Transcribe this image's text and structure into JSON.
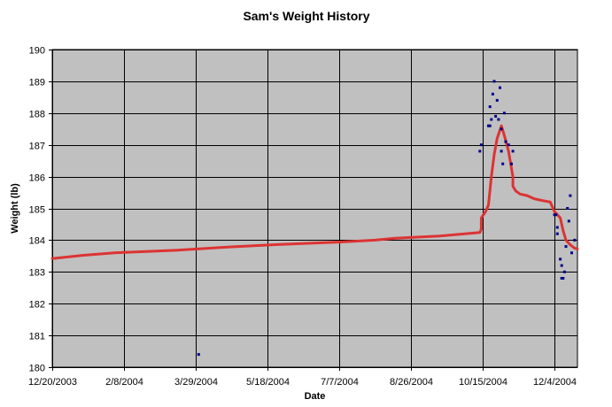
{
  "chart_data": {
    "type": "scatter",
    "title": "Sam's Weight History",
    "xlabel": "Date",
    "ylabel": "Weight (lb)",
    "ylim": [
      180,
      190
    ],
    "yticks": [
      180,
      181,
      182,
      183,
      184,
      185,
      186,
      187,
      188,
      189,
      190
    ],
    "xlim": [
      "2003-12-20",
      "2004-12-20"
    ],
    "xticks": [
      {
        "date": "2003-12-20",
        "label": "12/20/2003"
      },
      {
        "date": "2004-02-08",
        "label": "2/8/2004"
      },
      {
        "date": "2004-03-29",
        "label": "3/29/2004"
      },
      {
        "date": "2004-05-18",
        "label": "5/18/2004"
      },
      {
        "date": "2004-07-07",
        "label": "7/7/2004"
      },
      {
        "date": "2004-08-26",
        "label": "8/26/2004"
      },
      {
        "date": "2004-10-15",
        "label": "10/15/2004"
      },
      {
        "date": "2004-12-04",
        "label": "12/4/2004"
      }
    ],
    "grid": true,
    "plot_background": "#c0c0c0",
    "grid_color": "#000000",
    "series": [
      {
        "kind": "scatter",
        "color": "#00008b",
        "points": [
          {
            "x": "2004-03-31",
            "y": 180.4
          },
          {
            "x": "2004-10-13",
            "y": 186.8
          },
          {
            "x": "2004-10-14",
            "y": 187.0
          },
          {
            "x": "2004-10-19",
            "y": 187.6
          },
          {
            "x": "2004-10-20",
            "y": 187.6
          },
          {
            "x": "2004-10-20",
            "y": 188.2
          },
          {
            "x": "2004-10-21",
            "y": 187.8
          },
          {
            "x": "2004-10-22",
            "y": 188.6
          },
          {
            "x": "2004-10-23",
            "y": 189.0
          },
          {
            "x": "2004-10-24",
            "y": 187.9
          },
          {
            "x": "2004-10-25",
            "y": 188.4
          },
          {
            "x": "2004-10-26",
            "y": 187.8
          },
          {
            "x": "2004-10-27",
            "y": 188.8
          },
          {
            "x": "2004-10-28",
            "y": 186.8
          },
          {
            "x": "2004-10-28",
            "y": 187.5
          },
          {
            "x": "2004-10-29",
            "y": 186.4
          },
          {
            "x": "2004-10-30",
            "y": 188.0
          },
          {
            "x": "2004-10-31",
            "y": 187.1
          },
          {
            "x": "2004-11-02",
            "y": 187.0
          },
          {
            "x": "2004-11-04",
            "y": 186.4
          },
          {
            "x": "2004-11-05",
            "y": 186.8
          },
          {
            "x": "2004-12-04",
            "y": 184.8
          },
          {
            "x": "2004-12-05",
            "y": 184.8
          },
          {
            "x": "2004-12-06",
            "y": 184.4
          },
          {
            "x": "2004-12-06",
            "y": 184.2
          },
          {
            "x": "2004-12-08",
            "y": 183.4
          },
          {
            "x": "2004-12-09",
            "y": 183.2
          },
          {
            "x": "2004-12-09",
            "y": 182.8
          },
          {
            "x": "2004-12-10",
            "y": 182.8
          },
          {
            "x": "2004-12-11",
            "y": 183.0
          },
          {
            "x": "2004-12-12",
            "y": 183.8
          },
          {
            "x": "2004-12-13",
            "y": 185.0
          },
          {
            "x": "2004-12-14",
            "y": 184.6
          },
          {
            "x": "2004-12-15",
            "y": 185.4
          },
          {
            "x": "2004-12-16",
            "y": 183.6
          },
          {
            "x": "2004-12-18",
            "y": 184.0
          }
        ]
      },
      {
        "kind": "line",
        "color": "#dd3333",
        "points": [
          {
            "x": "2003-12-20",
            "y": 183.42
          },
          {
            "x": "2004-01-10",
            "y": 183.52
          },
          {
            "x": "2004-02-01",
            "y": 183.6
          },
          {
            "x": "2004-03-15",
            "y": 183.68
          },
          {
            "x": "2004-04-20",
            "y": 183.78
          },
          {
            "x": "2004-05-25",
            "y": 183.86
          },
          {
            "x": "2004-07-07",
            "y": 183.94
          },
          {
            "x": "2004-08-01",
            "y": 184.0
          },
          {
            "x": "2004-08-15",
            "y": 184.06
          },
          {
            "x": "2004-09-15",
            "y": 184.13
          },
          {
            "x": "2004-10-13",
            "y": 184.24
          },
          {
            "x": "2004-10-14",
            "y": 184.35
          },
          {
            "x": "2004-10-14",
            "y": 184.7
          },
          {
            "x": "2004-10-17",
            "y": 184.9
          },
          {
            "x": "2004-10-19",
            "y": 185.1
          },
          {
            "x": "2004-10-21",
            "y": 186.0
          },
          {
            "x": "2004-10-23",
            "y": 186.7
          },
          {
            "x": "2004-10-25",
            "y": 187.2
          },
          {
            "x": "2004-10-28",
            "y": 187.6
          },
          {
            "x": "2004-10-30",
            "y": 187.3
          },
          {
            "x": "2004-11-02",
            "y": 186.8
          },
          {
            "x": "2004-11-05",
            "y": 186.0
          },
          {
            "x": "2004-11-05",
            "y": 185.7
          },
          {
            "x": "2004-11-07",
            "y": 185.55
          },
          {
            "x": "2004-11-10",
            "y": 185.45
          },
          {
            "x": "2004-11-15",
            "y": 185.4
          },
          {
            "x": "2004-11-20",
            "y": 185.3
          },
          {
            "x": "2004-11-25",
            "y": 185.25
          },
          {
            "x": "2004-12-01",
            "y": 185.2
          },
          {
            "x": "2004-12-04",
            "y": 184.9
          },
          {
            "x": "2004-12-08",
            "y": 184.7
          },
          {
            "x": "2004-12-10",
            "y": 184.3
          },
          {
            "x": "2004-12-12",
            "y": 184.0
          },
          {
            "x": "2004-12-15",
            "y": 183.85
          },
          {
            "x": "2004-12-18",
            "y": 183.75
          },
          {
            "x": "2004-12-20",
            "y": 183.72
          }
        ]
      }
    ]
  }
}
